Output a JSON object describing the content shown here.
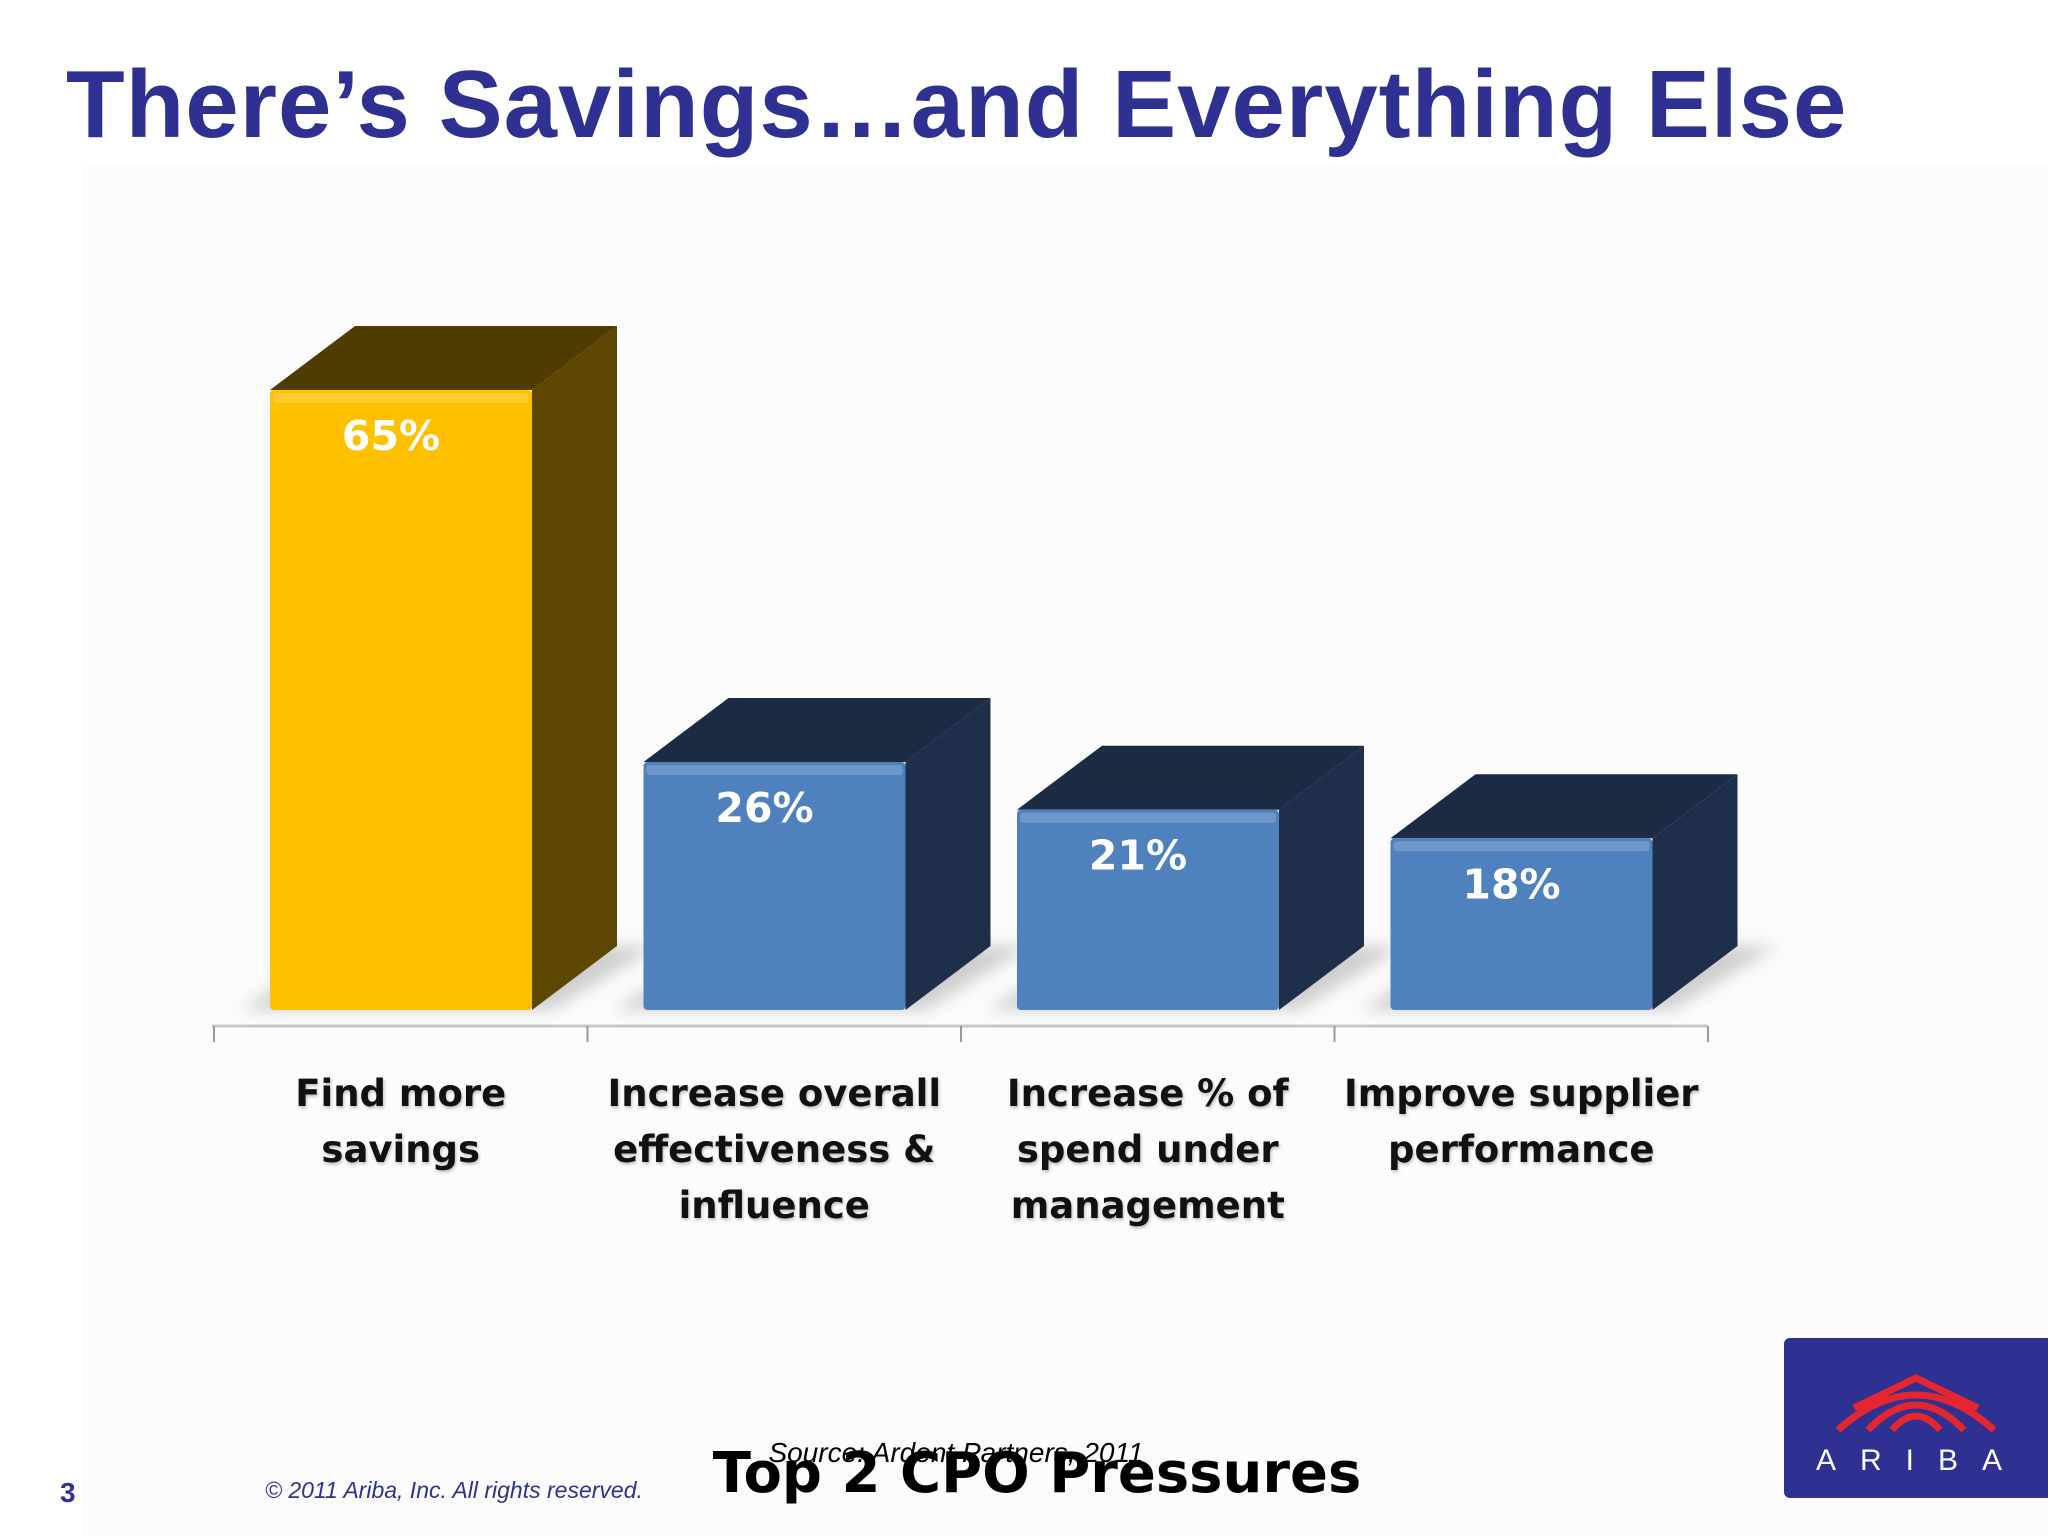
{
  "slide": {
    "title": "There’s Savings…and Everything Else",
    "source": "Source: Ardent Partners, 2011",
    "page_number": "3",
    "copyright": "© 2011 Ariba, Inc. All rights reserved.",
    "logo_text": "ARIBA"
  },
  "chart_data": {
    "type": "bar",
    "title": "Top 2 CPO Pressures",
    "categories": [
      "Find more savings",
      "Increase overall effectiveness & influence",
      "Increase % of spend under management",
      "Improve supplier performance"
    ],
    "values": [
      65,
      26,
      21,
      18
    ],
    "data_labels": [
      "65%",
      "26%",
      "21%",
      "18%"
    ],
    "ylim": [
      0,
      65
    ],
    "grid": false,
    "legend": "none",
    "style": "3d",
    "colors": {
      "highlight_front": "#ffc000",
      "highlight_top": "#4f3c00",
      "highlight_side": "#5e4700",
      "bar_front": "#4f81bd",
      "bar_top": "#1c2b44",
      "bar_side": "#1f2e49",
      "data_label": "#ffffff"
    }
  }
}
